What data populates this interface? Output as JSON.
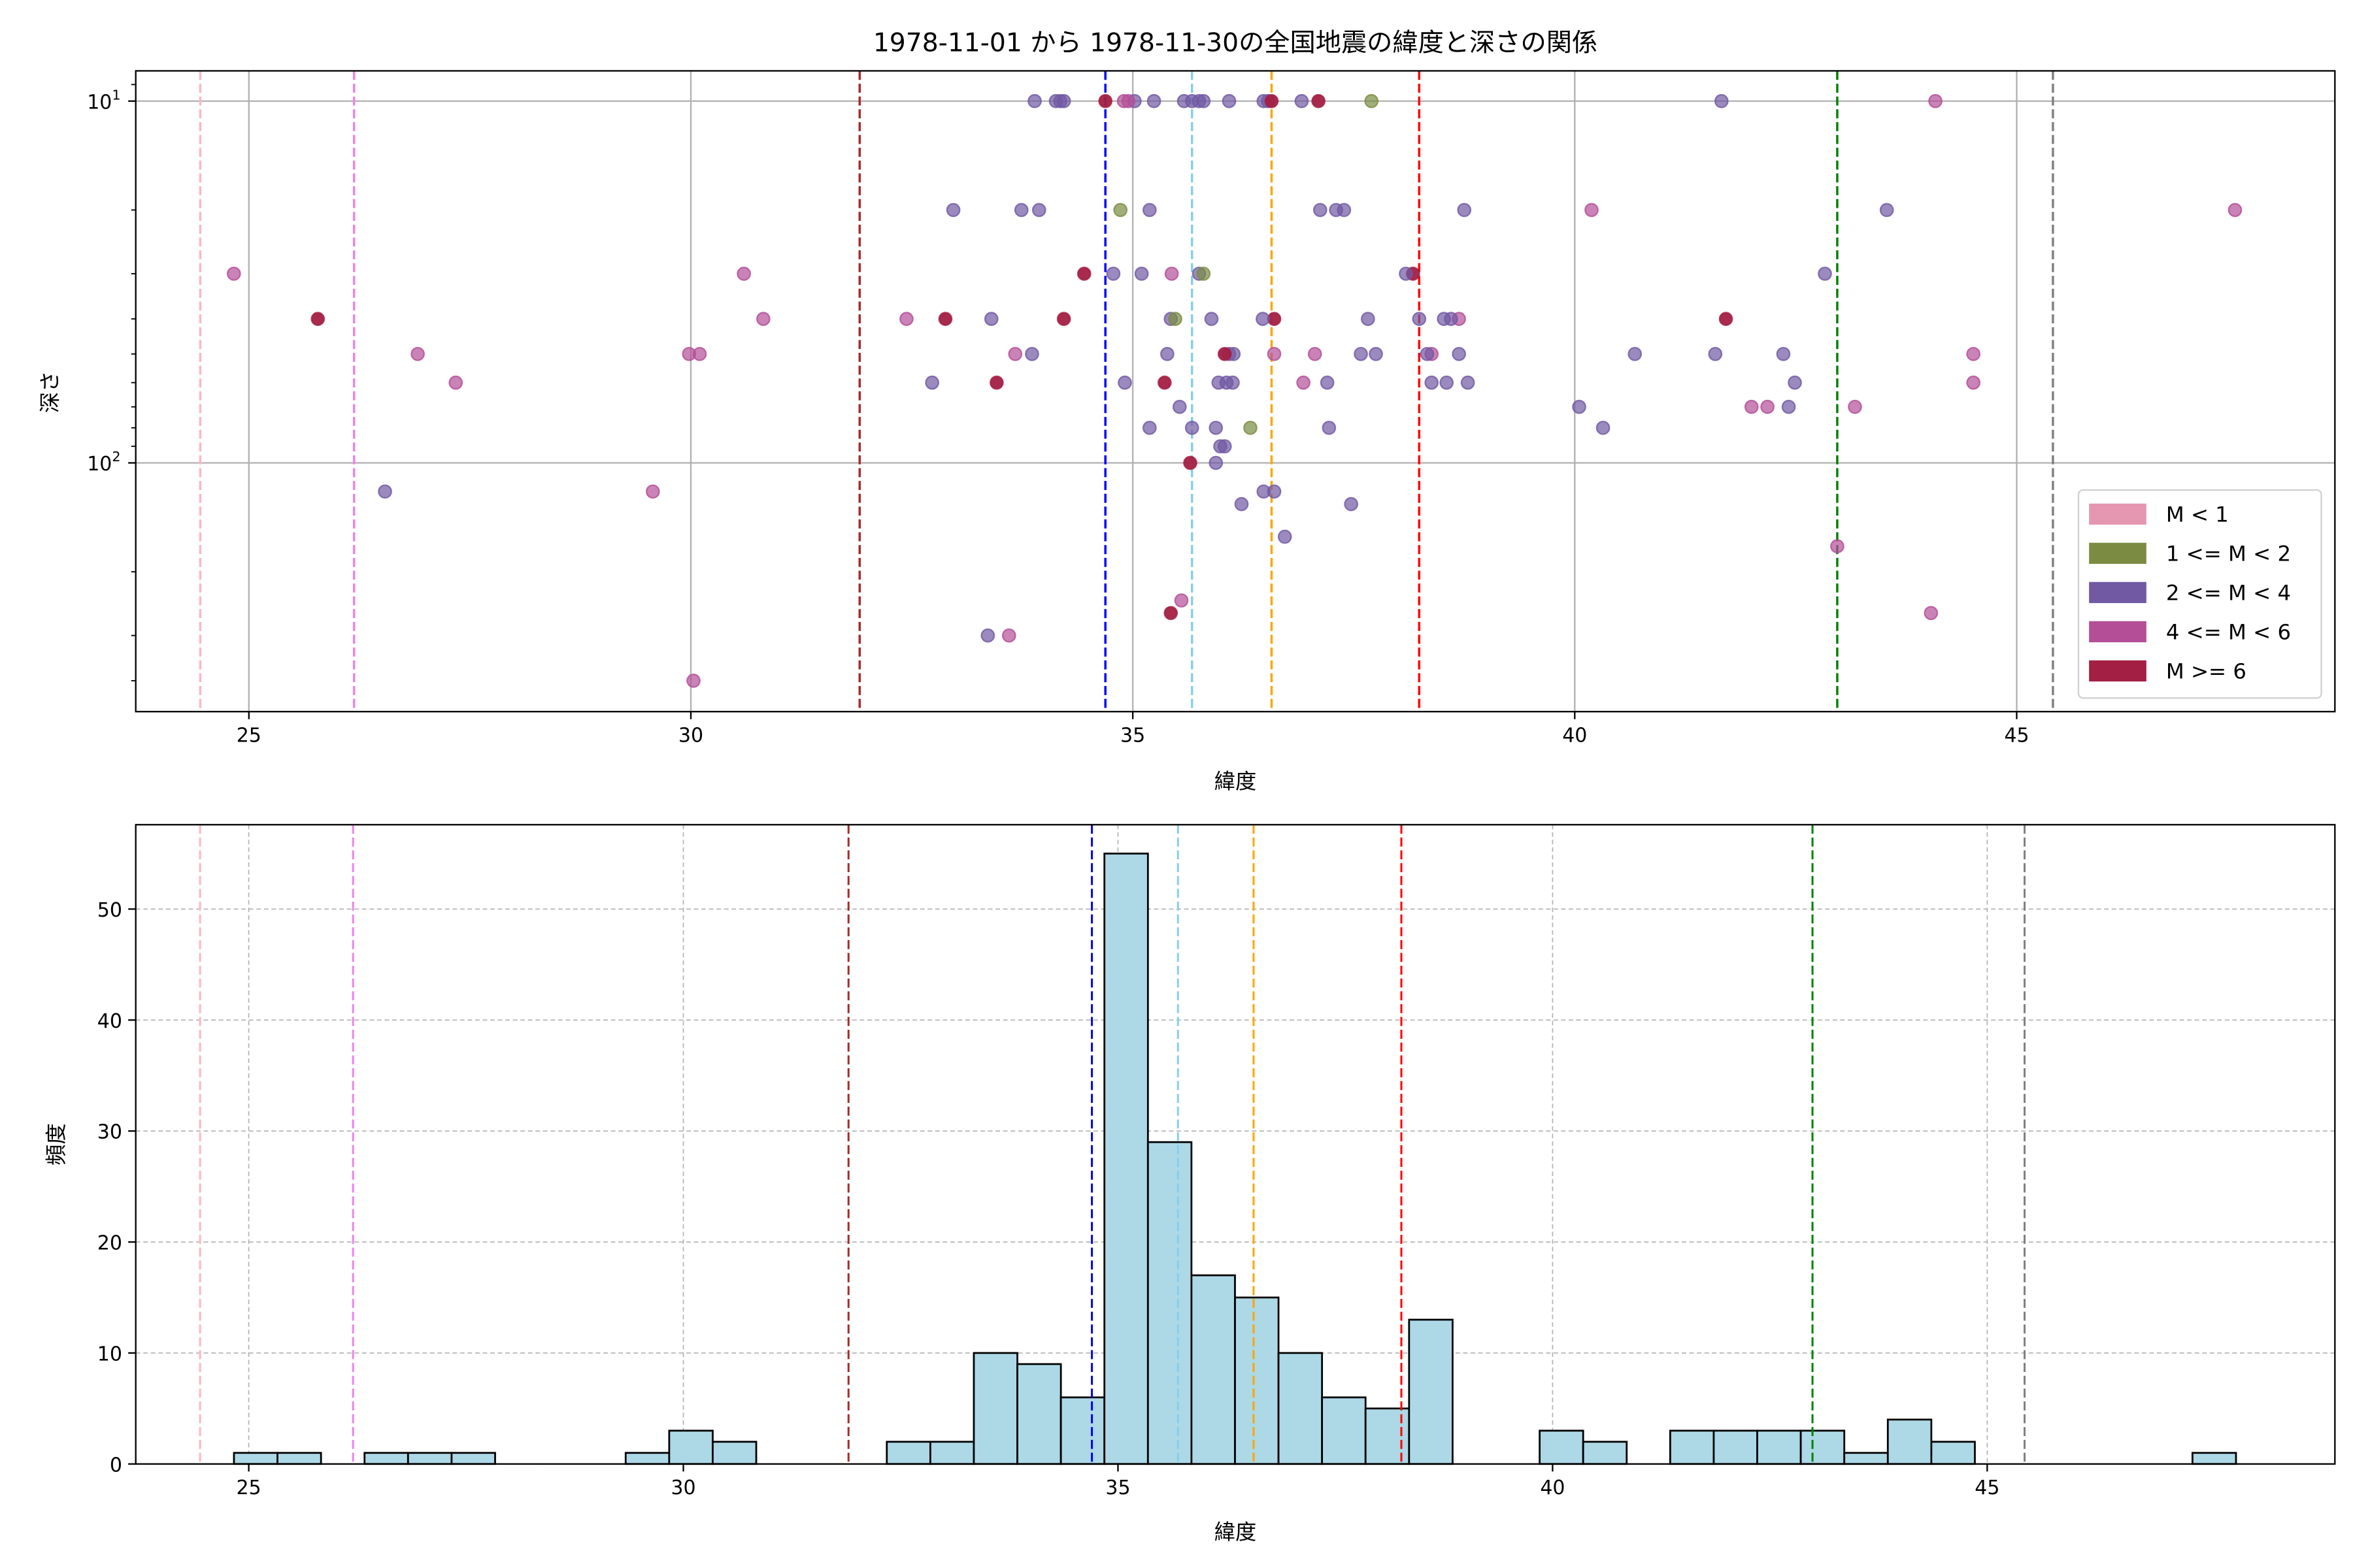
{
  "chart_data": [
    {
      "type": "scatter",
      "title": "1978-11-01 から 1978-11-30の全国地震の緯度と深さの関係",
      "xlabel": "緯度",
      "ylabel": "深さ",
      "xlim": [
        23.72,
        48.6
      ],
      "ylim": [
        8.25,
        487
      ],
      "yscale": "log",
      "yinverted": true,
      "grid": true,
      "xticks": [
        "25",
        "30",
        "35",
        "40",
        "45"
      ],
      "yticks": [
        {
          "value": 10,
          "base": "10",
          "exp": "1"
        },
        {
          "value": 100,
          "base": "10",
          "exp": "2"
        }
      ],
      "legend_position": "lower-right",
      "legend": [
        {
          "label": "M < 1",
          "color": "#e597b2"
        },
        {
          "label": "1 <= M < 2",
          "color": "#7b8c42"
        },
        {
          "label": "2 <= M < 4",
          "color": "#7159a3"
        },
        {
          "label": "4 <= M < 6",
          "color": "#b34e97"
        },
        {
          "label": "M >= 6",
          "color": "#a31f43"
        }
      ],
      "vlines": [
        {
          "x": 24.45,
          "color": "#ffb6c1"
        },
        {
          "x": 26.19,
          "color": "#ee82ee"
        },
        {
          "x": 31.91,
          "color": "#a52a2a"
        },
        {
          "x": 34.69,
          "color": "#0000ff"
        },
        {
          "x": 35.67,
          "color": "#87ceeb"
        },
        {
          "x": 36.57,
          "color": "#ffa500"
        },
        {
          "x": 38.24,
          "color": "#ff0000"
        },
        {
          "x": 42.97,
          "color": "#008000"
        },
        {
          "x": 45.41,
          "color": "#808080"
        }
      ],
      "points_format": "[latitude, depth, legend_index]",
      "points": [
        [
          33.89,
          10,
          2
        ],
        [
          34.13,
          10,
          2
        ],
        [
          34.18,
          10,
          2
        ],
        [
          34.22,
          10,
          2
        ],
        [
          35.02,
          10,
          2
        ],
        [
          35.24,
          10,
          2
        ],
        [
          35.58,
          10,
          2
        ],
        [
          35.67,
          10,
          2
        ],
        [
          35.75,
          10,
          2
        ],
        [
          35.8,
          10,
          2
        ],
        [
          36.09,
          10,
          2
        ],
        [
          36.48,
          10,
          2
        ],
        [
          36.91,
          10,
          2
        ],
        [
          36.53,
          10,
          2
        ],
        [
          41.66,
          10,
          2
        ],
        [
          34.9,
          10,
          3
        ],
        [
          34.95,
          10,
          3
        ],
        [
          44.08,
          10,
          3
        ],
        [
          37.7,
          10,
          1
        ],
        [
          34.69,
          10,
          4
        ],
        [
          37.1,
          10,
          4
        ],
        [
          36.57,
          10,
          4
        ],
        [
          32.97,
          20,
          2
        ],
        [
          33.74,
          20,
          2
        ],
        [
          33.94,
          20,
          2
        ],
        [
          35.19,
          20,
          2
        ],
        [
          37.12,
          20,
          2
        ],
        [
          37.3,
          20,
          2
        ],
        [
          37.39,
          20,
          2
        ],
        [
          38.75,
          20,
          2
        ],
        [
          43.53,
          20,
          2
        ],
        [
          34.86,
          20,
          1
        ],
        [
          40.19,
          20,
          3
        ],
        [
          47.47,
          20,
          3
        ],
        [
          24.83,
          30,
          3
        ],
        [
          30.6,
          30,
          3
        ],
        [
          35.44,
          30,
          3
        ],
        [
          34.45,
          30,
          4
        ],
        [
          38.17,
          30,
          4
        ],
        [
          34.78,
          30,
          2
        ],
        [
          35.1,
          30,
          2
        ],
        [
          35.75,
          30,
          2
        ],
        [
          38.09,
          30,
          2
        ],
        [
          42.83,
          30,
          2
        ],
        [
          35.8,
          30,
          1
        ],
        [
          25.78,
          40,
          4
        ],
        [
          32.88,
          40,
          4
        ],
        [
          34.22,
          40,
          4
        ],
        [
          36.6,
          40,
          4
        ],
        [
          41.71,
          40,
          4
        ],
        [
          30.82,
          40,
          3
        ],
        [
          32.44,
          40,
          3
        ],
        [
          38.69,
          40,
          3
        ],
        [
          33.4,
          40,
          2
        ],
        [
          35.89,
          40,
          2
        ],
        [
          36.47,
          40,
          2
        ],
        [
          37.66,
          40,
          2
        ],
        [
          38.24,
          40,
          2
        ],
        [
          38.52,
          40,
          2
        ],
        [
          38.6,
          40,
          2
        ],
        [
          35.43,
          40,
          2
        ],
        [
          35.48,
          40,
          1
        ],
        [
          26.91,
          50,
          3
        ],
        [
          29.98,
          50,
          3
        ],
        [
          30.1,
          50,
          3
        ],
        [
          33.67,
          50,
          3
        ],
        [
          36.6,
          50,
          3
        ],
        [
          37.06,
          50,
          3
        ],
        [
          38.38,
          50,
          3
        ],
        [
          44.51,
          50,
          3
        ],
        [
          33.86,
          50,
          2
        ],
        [
          35.39,
          50,
          2
        ],
        [
          36.09,
          50,
          2
        ],
        [
          36.14,
          50,
          2
        ],
        [
          37.58,
          50,
          2
        ],
        [
          37.75,
          50,
          2
        ],
        [
          38.33,
          50,
          2
        ],
        [
          38.69,
          50,
          2
        ],
        [
          40.68,
          50,
          2
        ],
        [
          41.59,
          50,
          2
        ],
        [
          42.36,
          50,
          2
        ],
        [
          36.04,
          50,
          4
        ],
        [
          27.34,
          60,
          3
        ],
        [
          36.93,
          60,
          3
        ],
        [
          44.51,
          60,
          3
        ],
        [
          33.46,
          60,
          4
        ],
        [
          35.36,
          60,
          4
        ],
        [
          32.73,
          60,
          2
        ],
        [
          34.91,
          60,
          2
        ],
        [
          35.97,
          60,
          2
        ],
        [
          36.06,
          60,
          2
        ],
        [
          36.13,
          60,
          2
        ],
        [
          37.2,
          60,
          2
        ],
        [
          38.38,
          60,
          2
        ],
        [
          38.55,
          60,
          2
        ],
        [
          38.79,
          60,
          2
        ],
        [
          42.49,
          60,
          2
        ],
        [
          35.53,
          70,
          2
        ],
        [
          40.05,
          70,
          2
        ],
        [
          42.42,
          70,
          2
        ],
        [
          42.0,
          70,
          3
        ],
        [
          42.18,
          70,
          3
        ],
        [
          43.17,
          70,
          3
        ],
        [
          35.19,
          80,
          2
        ],
        [
          35.67,
          80,
          2
        ],
        [
          35.94,
          80,
          2
        ],
        [
          37.22,
          80,
          2
        ],
        [
          40.32,
          80,
          2
        ],
        [
          36.33,
          80,
          1
        ],
        [
          35.99,
          90,
          2
        ],
        [
          36.04,
          90,
          2
        ],
        [
          35.65,
          100,
          4
        ],
        [
          35.94,
          100,
          2
        ],
        [
          26.54,
          120,
          2
        ],
        [
          36.48,
          120,
          2
        ],
        [
          36.6,
          120,
          2
        ],
        [
          29.57,
          120,
          3
        ],
        [
          36.23,
          130,
          2
        ],
        [
          37.47,
          130,
          2
        ],
        [
          36.72,
          160,
          2
        ],
        [
          42.97,
          170,
          3
        ],
        [
          35.55,
          240,
          3
        ],
        [
          35.43,
          260,
          4
        ],
        [
          44.03,
          260,
          3
        ],
        [
          33.36,
          300,
          2
        ],
        [
          33.6,
          300,
          3
        ],
        [
          30.03,
          400,
          3
        ]
      ]
    },
    {
      "type": "bar",
      "subtype": "histogram",
      "xlabel": "緯度",
      "ylabel": "頻度",
      "xlim": [
        23.7,
        49.0
      ],
      "ylim": [
        0,
        57.6
      ],
      "grid": true,
      "xticks": [
        "25",
        "30",
        "35",
        "40",
        "45"
      ],
      "yticks": [
        "0",
        "10",
        "20",
        "30",
        "40",
        "50"
      ],
      "bar_color": "#add8e6",
      "bin_start": 24.83,
      "bin_width": 0.5007,
      "counts": [
        1,
        1,
        0,
        1,
        1,
        1,
        0,
        0,
        0,
        1,
        3,
        2,
        0,
        0,
        0,
        2,
        2,
        10,
        9,
        6,
        55,
        29,
        17,
        15,
        10,
        6,
        5,
        13,
        0,
        0,
        3,
        2,
        0,
        3,
        3,
        3,
        3,
        1,
        4,
        2,
        0,
        0,
        0,
        0,
        0,
        1
      ],
      "vlines": [
        {
          "x": 24.44,
          "color": "#ffb6c1"
        },
        {
          "x": 26.2,
          "color": "#ee82ee"
        },
        {
          "x": 31.9,
          "color": "#a52a2a"
        },
        {
          "x": 34.7,
          "color": "#0000ff"
        },
        {
          "x": 35.69,
          "color": "#87ceeb"
        },
        {
          "x": 36.56,
          "color": "#ffa500"
        },
        {
          "x": 38.26,
          "color": "#ff0000"
        },
        {
          "x": 42.99,
          "color": "#008000"
        },
        {
          "x": 45.43,
          "color": "#808080"
        }
      ]
    }
  ]
}
